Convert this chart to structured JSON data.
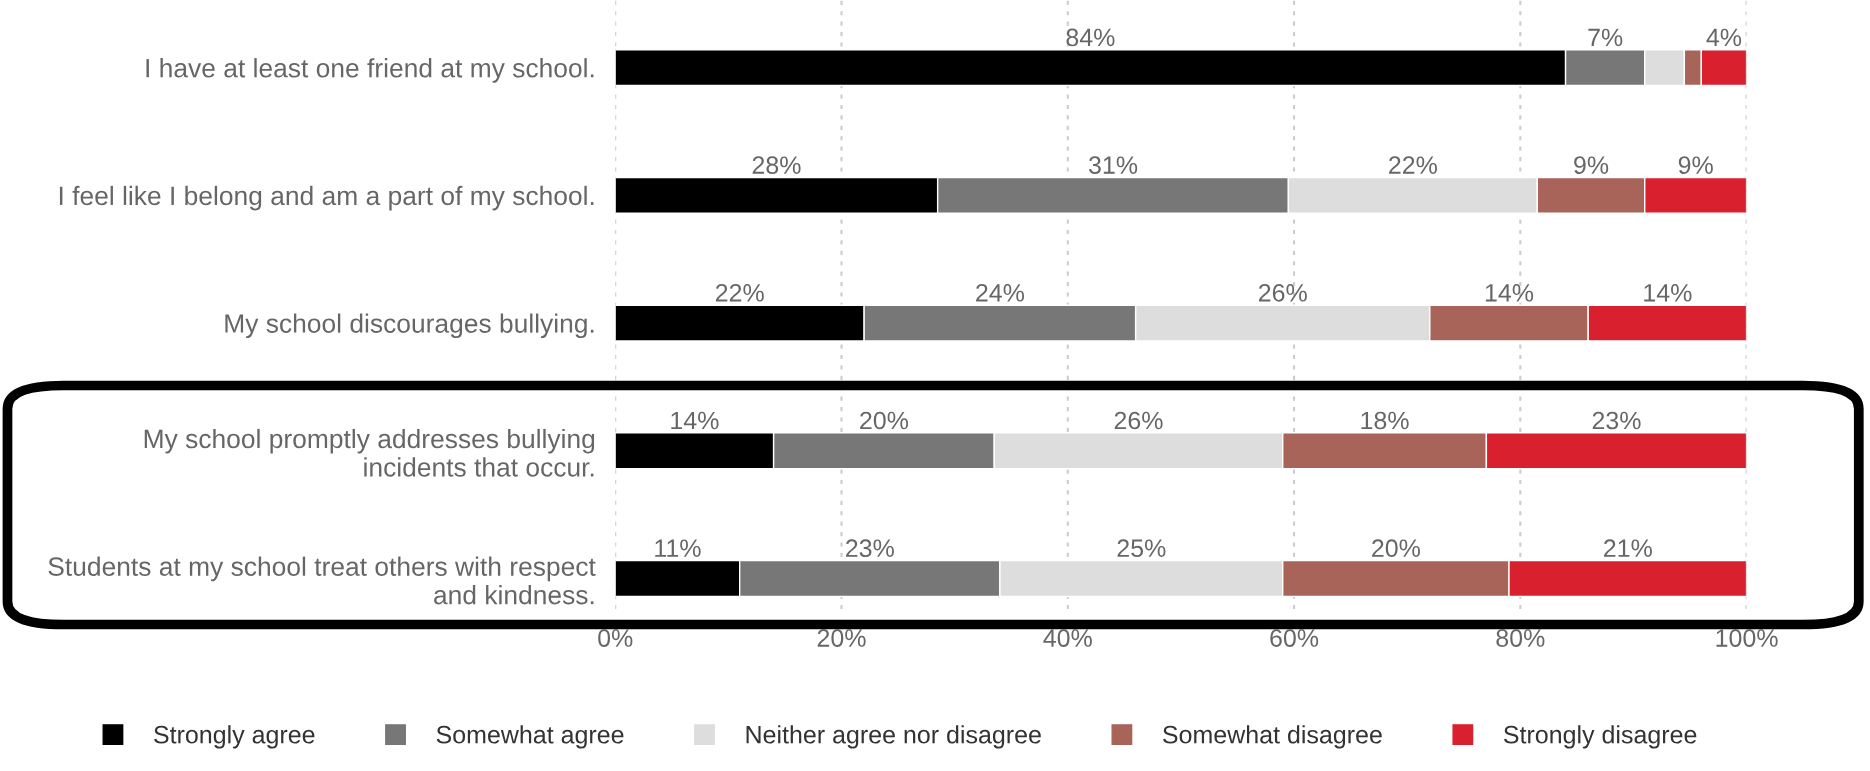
{
  "chart_data": {
    "type": "bar",
    "orientation": "horizontal",
    "stacked": true,
    "categories": [
      "I have at least one friend at my school.",
      "I feel like I belong and am a part of my school.",
      "My school discourages bullying.",
      "My school promptly addresses bullying incidents that occur.",
      "Students at my school treat others with respect and kindness."
    ],
    "series": [
      {
        "name": "Strongly agree",
        "color": "#000000",
        "values": [
          84,
          28.5,
          22,
          14,
          11
        ],
        "value_labels": [
          "84%",
          "28%",
          "22%",
          "14%",
          "11%"
        ]
      },
      {
        "name": "Somewhat agree",
        "color": "#777777",
        "values": [
          7,
          31,
          24,
          19.5,
          23
        ],
        "value_labels": [
          "7%",
          "31%",
          "24%",
          "20%",
          "23%"
        ]
      },
      {
        "name": "Neither agree nor disagree",
        "color": "#dddddd",
        "values": [
          3.5,
          22,
          26,
          25.5,
          25
        ],
        "value_labels": [
          null,
          "22%",
          "26%",
          "26%",
          "25%"
        ]
      },
      {
        "name": "Somewhat disagree",
        "color": "#a86458",
        "values": [
          1.5,
          9.5,
          14,
          18,
          20
        ],
        "value_labels": [
          null,
          "9%",
          "14%",
          "18%",
          "20%"
        ]
      },
      {
        "name": "Strongly disagree",
        "color": "#d9202e",
        "values": [
          4,
          9,
          14,
          23,
          21
        ],
        "value_labels": [
          "4%",
          "9%",
          "14%",
          "23%",
          "21%"
        ]
      }
    ],
    "xlim": [
      0,
      100
    ],
    "xticks": [
      {
        "value": 0,
        "label": "0%"
      },
      {
        "value": 20,
        "label": "20%"
      },
      {
        "value": 40,
        "label": "40%"
      },
      {
        "value": 60,
        "label": "60%"
      },
      {
        "value": 80,
        "label": "80%"
      },
      {
        "value": 100,
        "label": "100%"
      }
    ],
    "grid": "x",
    "legend": "bottom"
  }
}
